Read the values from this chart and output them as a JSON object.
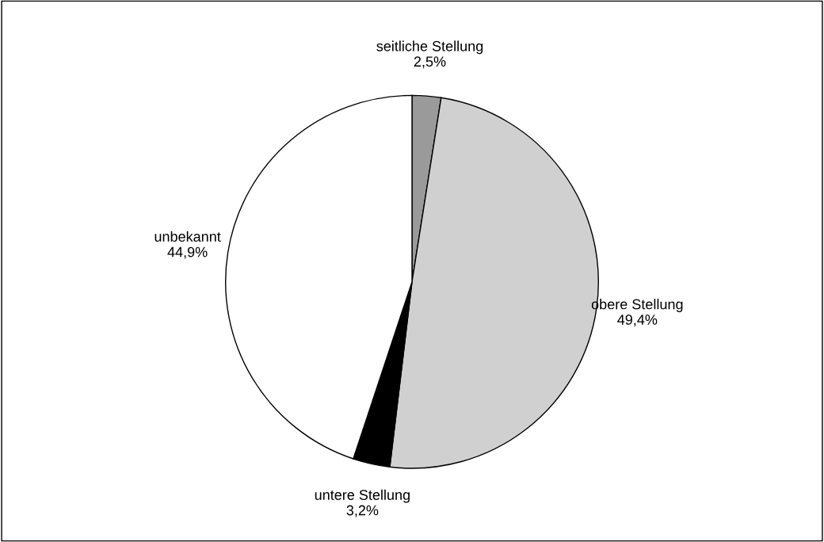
{
  "chart_data": {
    "type": "pie",
    "categories": [
      "seitliche Stellung",
      "obere Stellung",
      "untere Stellung",
      "unbekannt"
    ],
    "values": [
      2.5,
      49.4,
      3.2,
      44.9
    ],
    "value_labels": [
      "2,5%",
      "49,4%",
      "3,2%",
      "44,9%"
    ],
    "colors": [
      "#9a9a9a",
      "#d0d0d0",
      "#000000",
      "#ffffff"
    ],
    "legend": false
  }
}
